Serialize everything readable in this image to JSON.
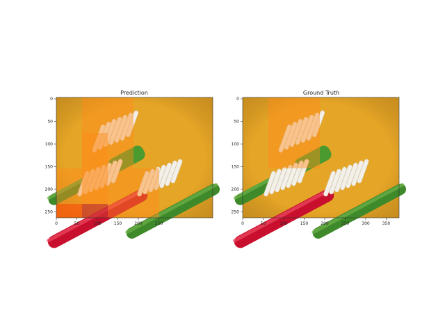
{
  "panels": [
    {
      "id": "prediction",
      "title": "Prediction",
      "x_ticks": [
        "0",
        "50",
        "100",
        "150",
        "200",
        "250"
      ],
      "y_ticks": [
        "0",
        "50",
        "100",
        "150",
        "200",
        "250"
      ],
      "overlay_regions": [
        {
          "rows": [
            0,
            1
          ],
          "cols": [
            1,
            2
          ],
          "color": "#ff8c1a"
        },
        {
          "rows": [
            1,
            2
          ],
          "cols": [
            1,
            1
          ],
          "color": "#ff8c1a"
        },
        {
          "rows": [
            2,
            3
          ],
          "cols": [
            0,
            1
          ],
          "color": "#ff8c1a"
        },
        {
          "rows": [
            2,
            3
          ],
          "cols": [
            2,
            3
          ],
          "color": "#ff8c1a"
        },
        {
          "rows": [
            3,
            3
          ],
          "cols": [
            0,
            0
          ],
          "color": "#ff3300"
        },
        {
          "rows": [
            3,
            3
          ],
          "cols": [
            1,
            1
          ],
          "color": "#b0003a"
        }
      ]
    },
    {
      "id": "ground-truth",
      "title": "Ground Truth",
      "x_ticks": [
        "0",
        "50",
        "100",
        "150",
        "200",
        "250",
        "300",
        "350"
      ],
      "y_ticks": [
        "0",
        "50",
        "100",
        "150",
        "200",
        "250"
      ],
      "overlay_regions": [
        {
          "rows": [
            0,
            1
          ],
          "cols": [
            1,
            2
          ],
          "color": "#ff8c1a"
        }
      ]
    }
  ],
  "colors": {
    "background": "#e5a526",
    "green_brush": "#3e8a2a",
    "red_brush": "#c8102e",
    "bristles": "#f3f0ea"
  }
}
